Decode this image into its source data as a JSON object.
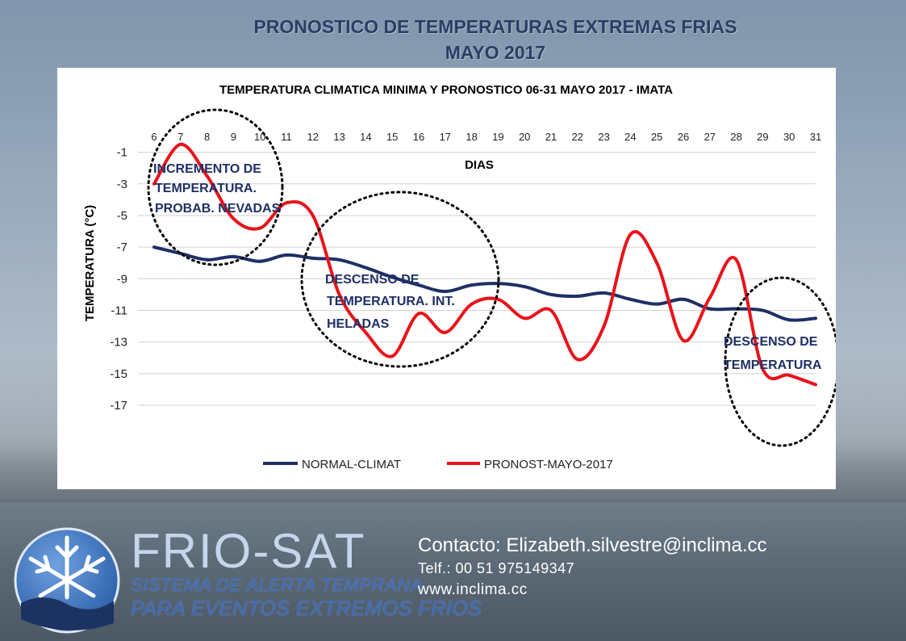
{
  "page": {
    "title_line1": "PRONOSTICO DE TEMPERATURAS EXTREMAS FRIAS",
    "title_line2": "MAYO 2017"
  },
  "colors": {
    "normal": "#1f2f66",
    "pronost": "#e8131b",
    "text": "#1f2f66"
  },
  "chart_data": {
    "type": "line",
    "title": "TEMPERATURA CLIMATICA MINIMA Y PRONOSTICO 06-31 MAYO 2017 -  IMATA",
    "xlabel": "DIAS",
    "ylabel": "TEMPERATURA (°C)",
    "categories": [
      "6",
      "7",
      "8",
      "9",
      "10",
      "11",
      "12",
      "13",
      "14",
      "15",
      "16",
      "17",
      "18",
      "19",
      "20",
      "21",
      "22",
      "23",
      "24",
      "25",
      "26",
      "27",
      "28",
      "29",
      "30",
      "31"
    ],
    "yticks": [
      -1,
      -3,
      -5,
      -7,
      -9,
      -11,
      -13,
      -15,
      -17
    ],
    "ylim": [
      -17,
      0
    ],
    "grid": true,
    "legend_position": "bottom",
    "series": [
      {
        "name": "NORMAL-CLIMAT",
        "values": [
          -7.0,
          -7.4,
          -7.8,
          -7.6,
          -7.9,
          -7.5,
          -7.7,
          -7.8,
          -8.3,
          -8.9,
          -9.4,
          -9.8,
          -9.4,
          -9.3,
          -9.5,
          -10.0,
          -10.1,
          -9.9,
          -10.3,
          -10.6,
          -10.3,
          -10.9,
          -10.9,
          -11.0,
          -11.6,
          -11.5
        ]
      },
      {
        "name": "PRONOST-MAYO-2017",
        "values": [
          -3.0,
          -0.5,
          -2.5,
          -5.2,
          -5.8,
          -4.2,
          -5.0,
          -10.0,
          -12.4,
          -13.9,
          -11.2,
          -12.4,
          -10.6,
          -10.3,
          -11.5,
          -11.0,
          -14.1,
          -12.0,
          -6.2,
          -8.0,
          -12.9,
          -10.2,
          -7.8,
          -14.7,
          -15.1,
          -15.7
        ]
      }
    ],
    "annotations": [
      {
        "lines": [
          "INCREMENTO  DE",
          "TEMPERATURA.",
          "PROBAB. NEVADAS"
        ]
      },
      {
        "lines": [
          "DESCENSO DE",
          "TEMPERATURA. INT.",
          "HELADAS"
        ]
      },
      {
        "lines": [
          "DESCENSO DE",
          "TEMPERATURA"
        ]
      }
    ]
  },
  "footer": {
    "brand": "FRIO-SAT",
    "subtitle1": "SISTEMA DE ALERTA TEMPRANA",
    "subtitle2": "PARA EVENTOS EXTREMOS FRIOS",
    "contact": "Contacto: Elizabeth.silvestre@inclima.cc",
    "phone": "Telf.: 00 51 975149347",
    "web": "www.inclima.cc"
  }
}
